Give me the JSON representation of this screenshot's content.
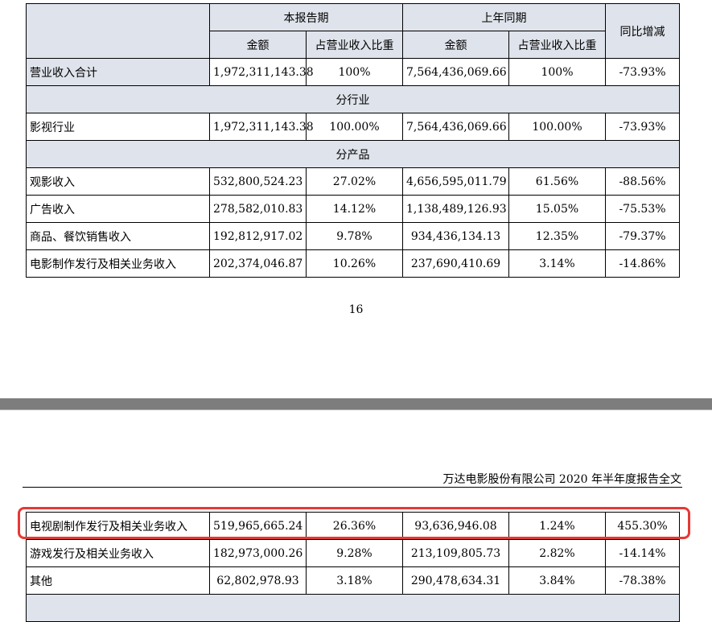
{
  "table1": {
    "header": {
      "current_period": "本报告期",
      "prior_period": "上年同期",
      "yoy": "同比增减",
      "amount": "金额",
      "ratio": "占营业收入比重"
    },
    "total_row": [
      "营业收入合计",
      "1,972,311,143.38",
      "100%",
      "7,564,436,069.66",
      "100%",
      "-73.93%"
    ],
    "section_industry": "分行业",
    "industry_row": [
      "影视行业",
      "1,972,311,143.38",
      "100.00%",
      "7,564,436,069.66",
      "100.00%",
      "-73.93%"
    ],
    "section_product": "分产品",
    "product_rows": [
      [
        "观影收入",
        "532,800,524.23",
        "27.02%",
        "4,656,595,011.79",
        "61.56%",
        "-88.56%"
      ],
      [
        "广告收入",
        "278,582,010.83",
        "14.12%",
        "1,138,489,126.93",
        "15.05%",
        "-75.53%"
      ],
      [
        "商品、餐饮销售收入",
        "192,812,917.02",
        "9.78%",
        "934,436,134.13",
        "12.35%",
        "-79.37%"
      ],
      [
        "电影制作发行及相关业务收入",
        "202,374,046.87",
        "10.26%",
        "237,690,410.69",
        "3.14%",
        "-14.86%"
      ]
    ]
  },
  "page_number": "16",
  "page_header": "万达电影股份有限公司 2020 年半年度报告全文",
  "table2": {
    "rows": [
      [
        "电视剧制作发行及相关业务收入",
        "519,965,665.24",
        "26.36%",
        "93,636,946.08",
        "1.24%",
        "455.30%"
      ],
      [
        "游戏发行及相关业务收入",
        "182,973,000.26",
        "9.28%",
        "213,109,805.73",
        "2.82%",
        "-14.14%"
      ],
      [
        "其他",
        "62,802,978.93",
        "3.18%",
        "290,478,634.31",
        "3.84%",
        "-78.38%"
      ]
    ]
  },
  "colors": {
    "header_shade": "#dfe3eb",
    "highlight": "#e53935",
    "page_gap": "#7d7d7d"
  }
}
